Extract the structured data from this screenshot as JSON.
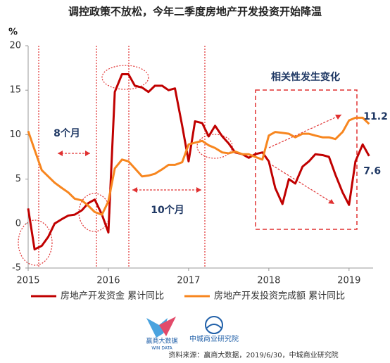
{
  "chart_data": {
    "type": "line",
    "title": "调控政策不放松，今年二季度房地产开发投资开始降温",
    "y_unit": "%",
    "x": [
      2015.0,
      2015.08,
      2015.17,
      2015.25,
      2015.33,
      2015.42,
      2015.5,
      2015.58,
      2015.67,
      2015.75,
      2015.83,
      2015.92,
      2016.0,
      2016.08,
      2016.17,
      2016.25,
      2016.33,
      2016.42,
      2016.5,
      2016.58,
      2016.67,
      2016.75,
      2016.83,
      2016.92,
      2017.0,
      2017.08,
      2017.17,
      2017.25,
      2017.33,
      2017.42,
      2017.5,
      2017.58,
      2017.67,
      2017.75,
      2017.83,
      2017.92,
      2018.0,
      2018.08,
      2018.17,
      2018.25,
      2018.33,
      2018.42,
      2018.5,
      2018.58,
      2018.67,
      2018.75,
      2018.83,
      2018.92,
      2019.0,
      2019.08,
      2019.17,
      2019.25
    ],
    "series": [
      {
        "name": "房地产开发资金 累计同比",
        "color": "#c00000",
        "values": [
          1.7,
          -2.9,
          -2.5,
          -1.5,
          0.0,
          0.5,
          0.9,
          1.0,
          1.5,
          2.3,
          2.7,
          1.0,
          -1.0,
          14.8,
          16.8,
          16.8,
          15.5,
          15.3,
          14.8,
          15.5,
          15.5,
          15.0,
          15.2,
          11.0,
          7.0,
          11.5,
          11.3,
          9.8,
          11.0,
          9.8,
          9.0,
          8.0,
          7.8,
          7.4,
          7.8,
          8.0,
          7.0,
          4.0,
          2.2,
          5.0,
          4.5,
          6.4,
          7.0,
          7.8,
          7.7,
          7.5,
          5.5,
          3.5,
          2.1,
          7.0,
          8.9,
          7.6
        ]
      },
      {
        "name": "房地产开发投资完成额 累计同比",
        "color": "#f7861f",
        "values": [
          10.4,
          8.3,
          6.0,
          5.3,
          4.6,
          4.0,
          3.5,
          2.8,
          2.6,
          2.0,
          1.3,
          1.0,
          2.5,
          6.2,
          7.2,
          7.0,
          6.2,
          5.3,
          5.4,
          5.6,
          6.1,
          6.6,
          6.6,
          6.9,
          8.9,
          9.1,
          9.3,
          8.8,
          8.5,
          8.0,
          7.9,
          8.1,
          7.8,
          7.8,
          7.5,
          7.2,
          9.9,
          10.3,
          10.2,
          10.1,
          9.7,
          10.1,
          10.1,
          9.9,
          9.7,
          9.7,
          9.5,
          10.3,
          11.6,
          11.9,
          11.9,
          11.2
        ]
      }
    ],
    "xlim": [
      2015,
      2019.3
    ],
    "xticks": [
      2015,
      2016,
      2017,
      2018,
      2019
    ],
    "ylim": [
      -5,
      20
    ],
    "yticks": [
      -5,
      0,
      5,
      10,
      15,
      20
    ],
    "grid": false,
    "annotations": [
      "8个月",
      "10个月",
      "相关性发生变化"
    ],
    "source": "资料来源：赢商大数据，2019/6/30，中城商业研究院",
    "logos": [
      "赢商大数据",
      "WIN DATA",
      "中城商业研究院"
    ]
  }
}
